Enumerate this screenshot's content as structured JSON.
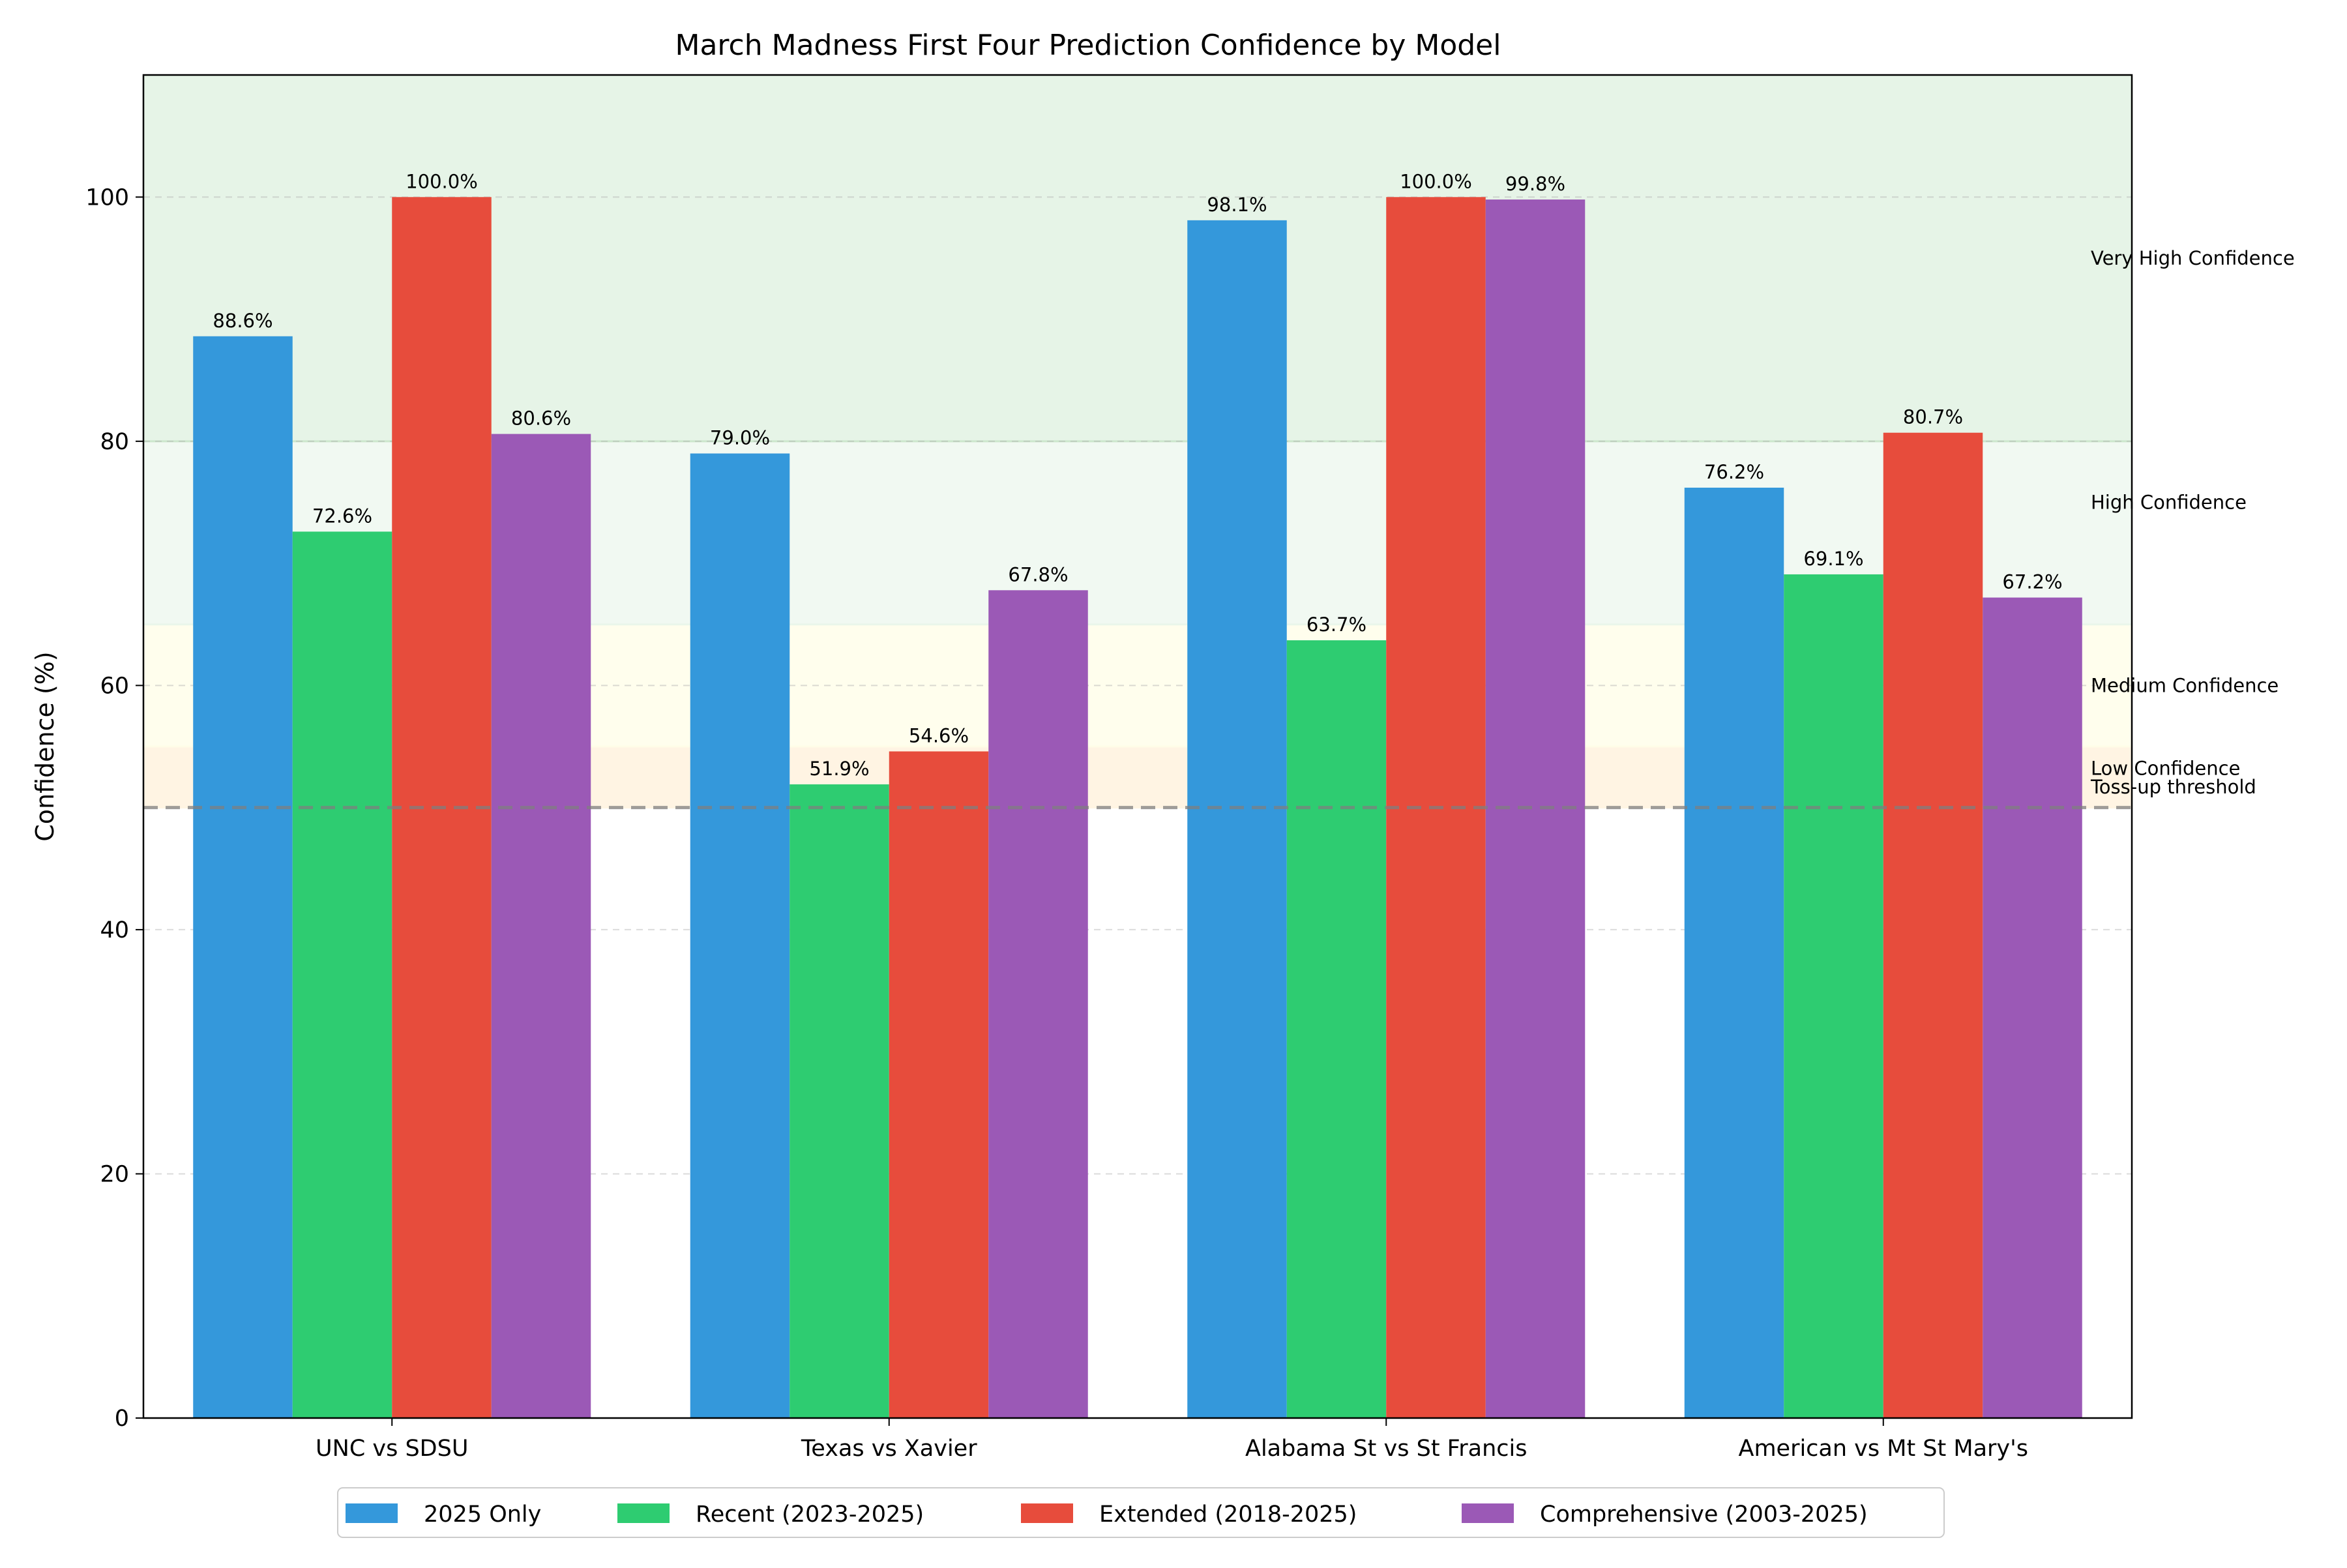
{
  "chart_data": {
    "type": "bar",
    "title": "March Madness First Four Prediction Confidence by Model",
    "xlabel": "",
    "ylabel": "Confidence (%)",
    "ylim": [
      0,
      110
    ],
    "yticks": [
      0,
      20,
      40,
      60,
      80,
      100
    ],
    "grid": "y-dashed",
    "legend_position": "bottom-center",
    "categories": [
      "UNC vs SDSU",
      "Texas vs Xavier",
      "Alabama St vs St Francis",
      "American vs Mt St Mary's"
    ],
    "series": [
      {
        "name": "2025 Only",
        "color": "#3498db",
        "values": [
          88.6,
          79.0,
          98.1,
          76.2
        ]
      },
      {
        "name": "Recent (2023-2025)",
        "color": "#2ecc71",
        "values": [
          72.6,
          51.9,
          63.7,
          69.1
        ]
      },
      {
        "name": "Extended (2018-2025)",
        "color": "#e74c3c",
        "values": [
          100.0,
          54.6,
          100.0,
          80.7
        ]
      },
      {
        "name": "Comprehensive (2003-2025)",
        "color": "#9b59b6",
        "values": [
          80.6,
          67.8,
          99.8,
          67.2
        ]
      }
    ],
    "value_label_suffix": "%",
    "bands": [
      {
        "label": "Very High Confidence",
        "from": 80,
        "to": 110,
        "color": "#c8e6c9",
        "opacity": 0.45,
        "label_at": 95
      },
      {
        "label": "High Confidence",
        "from": 65,
        "to": 80,
        "color": "#e8f5e9",
        "opacity": 0.6,
        "label_at": 75
      },
      {
        "label": "Medium Confidence",
        "from": 55,
        "to": 65,
        "color": "#fffde7",
        "opacity": 0.75,
        "label_at": 60
      },
      {
        "label": "Low Confidence",
        "from": 50,
        "to": 55,
        "color": "#fff3e0",
        "opacity": 0.9,
        "label_at": 53.2
      }
    ],
    "threshold": {
      "label": "Toss-up threshold",
      "value": 50,
      "color": "#7f7f7f",
      "label_at": 51.7
    }
  }
}
